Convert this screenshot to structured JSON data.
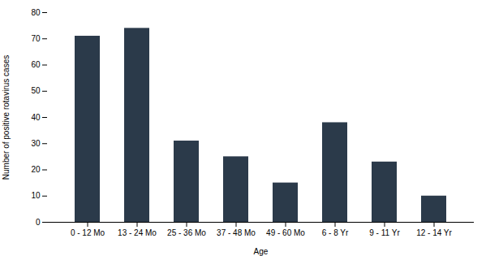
{
  "chart_data": {
    "type": "bar",
    "categories": [
      "0 - 12 Mo",
      "13 - 24 Mo",
      "25 - 36 Mo",
      "37 - 48 Mo",
      "49 - 60 Mo",
      "6 - 8 Yr",
      "9 - 11 Yr",
      "12 - 14 Yr"
    ],
    "values": [
      71,
      74,
      31,
      25,
      15,
      38,
      23,
      10
    ],
    "color": "#2B3A4A",
    "xlabel": "Age",
    "ylabel": "Number of positive rotavirus cases",
    "ylim": [
      0,
      80
    ],
    "yticks": [
      0,
      10,
      20,
      30,
      40,
      50,
      60,
      70,
      80
    ],
    "grid": false
  }
}
